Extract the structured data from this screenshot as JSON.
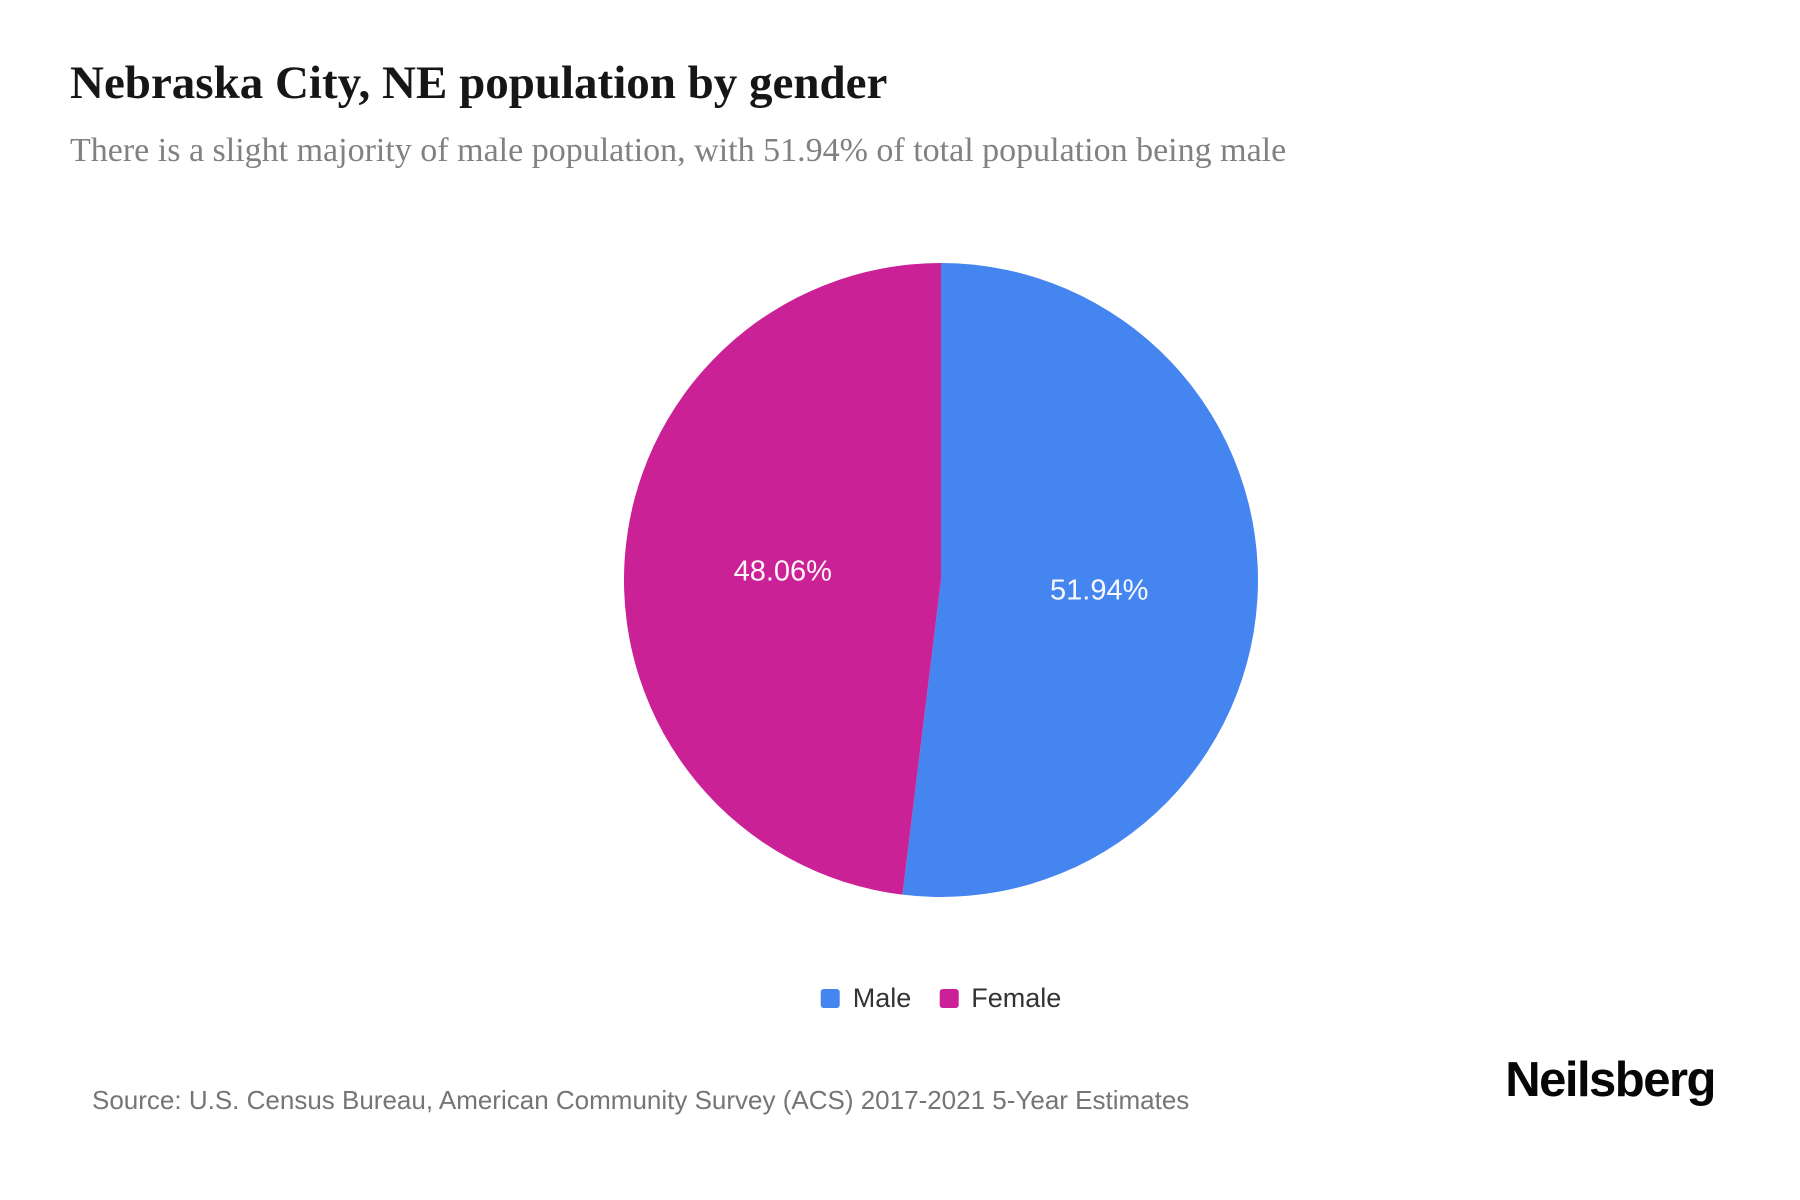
{
  "header": {
    "title": "Nebraska City, NE population by gender",
    "subtitle": "There is a slight majority of male population, with 51.94% of total population being male"
  },
  "chart_data": {
    "type": "pie",
    "title": "Nebraska City, NE population by gender",
    "categories": [
      "Male",
      "Female"
    ],
    "values": [
      51.94,
      48.06
    ],
    "slices": [
      {
        "name": "Male",
        "value": 51.94,
        "label": "51.94%",
        "color": "#4485F0"
      },
      {
        "name": "Female",
        "value": 48.06,
        "label": "48.06%",
        "color": "#CB2196"
      }
    ],
    "start_angle_deg": 0,
    "direction": "clockwise",
    "slice_label_color": "#FFFFFF",
    "legend_position": "bottom-center"
  },
  "footer": {
    "source": "Source: U.S. Census Bureau, American Community Survey (ACS) 2017-2021 5-Year Estimates",
    "brand": "Neilsberg"
  }
}
